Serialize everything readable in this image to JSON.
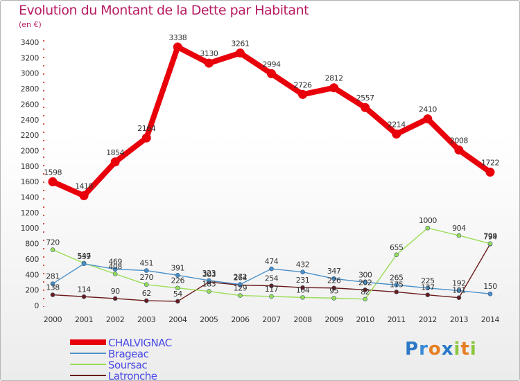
{
  "header": {
    "title": "Evolution du Montant de la Dette par Habitant",
    "subtitle": "(en €)"
  },
  "logo": {
    "text": "Proxiti",
    "letters": [
      {
        "ch": "P",
        "color": "#2b78c6"
      },
      {
        "ch": "r",
        "color": "#3a8ad4"
      },
      {
        "ch": "o",
        "color": "#e67e22"
      },
      {
        "ch": "x",
        "color": "#2b78c6"
      },
      {
        "ch": "i",
        "color": "#8cc63f"
      },
      {
        "ch": "t",
        "color": "#e67e22"
      },
      {
        "ch": "i",
        "color": "#8cc63f"
      }
    ]
  },
  "colors": {
    "title": "#b81a62",
    "axis_label": "#333333",
    "grid_tick": "#d01010",
    "legend_text": "#4a4ae6"
  },
  "chart_data": {
    "type": "line",
    "title": "Evolution du Montant de la Dette par Habitant",
    "ylabel": "(en €)",
    "xlabel": "",
    "ylim": [
      0,
      3400
    ],
    "yticks": [
      0,
      200,
      400,
      600,
      800,
      1000,
      1200,
      1400,
      1600,
      1800,
      2000,
      2200,
      2400,
      2600,
      2800,
      3000,
      3200,
      3400
    ],
    "x": [
      "2000",
      "2001",
      "2002",
      "2003",
      "2004",
      "2005",
      "2006",
      "2007",
      "2008",
      "2009",
      "2010",
      "2011",
      "2012",
      "2013",
      "2014"
    ],
    "series": [
      {
        "name": "CHALVIGNAC",
        "color": "#e8000b",
        "values": [
          1598,
          1418,
          1854,
          2164,
          3338,
          3130,
          3261,
          2994,
          2726,
          2812,
          2557,
          2214,
          2410,
          2008,
          1722
        ]
      },
      {
        "name": "Brageac",
        "color": "#4a90c8",
        "values": [
          281,
          539,
          469,
          451,
          391,
          323,
          272,
          474,
          432,
          347,
          300,
          265,
          225,
          192,
          150
        ]
      },
      {
        "name": "Soursac",
        "color": "#99dd55",
        "values": [
          720,
          547,
          408,
          270,
          226,
          183,
          129,
          117,
          104,
          95,
          82,
          655,
          1000,
          904,
          799
        ]
      },
      {
        "name": "Latronche",
        "color": "#6b1a1a",
        "values": [
          138,
          114,
          90,
          62,
          54,
          303,
          264,
          254,
          231,
          226,
          202,
          175,
          137,
          101,
          794
        ]
      }
    ],
    "legend": "bottom-left",
    "grid": false
  }
}
